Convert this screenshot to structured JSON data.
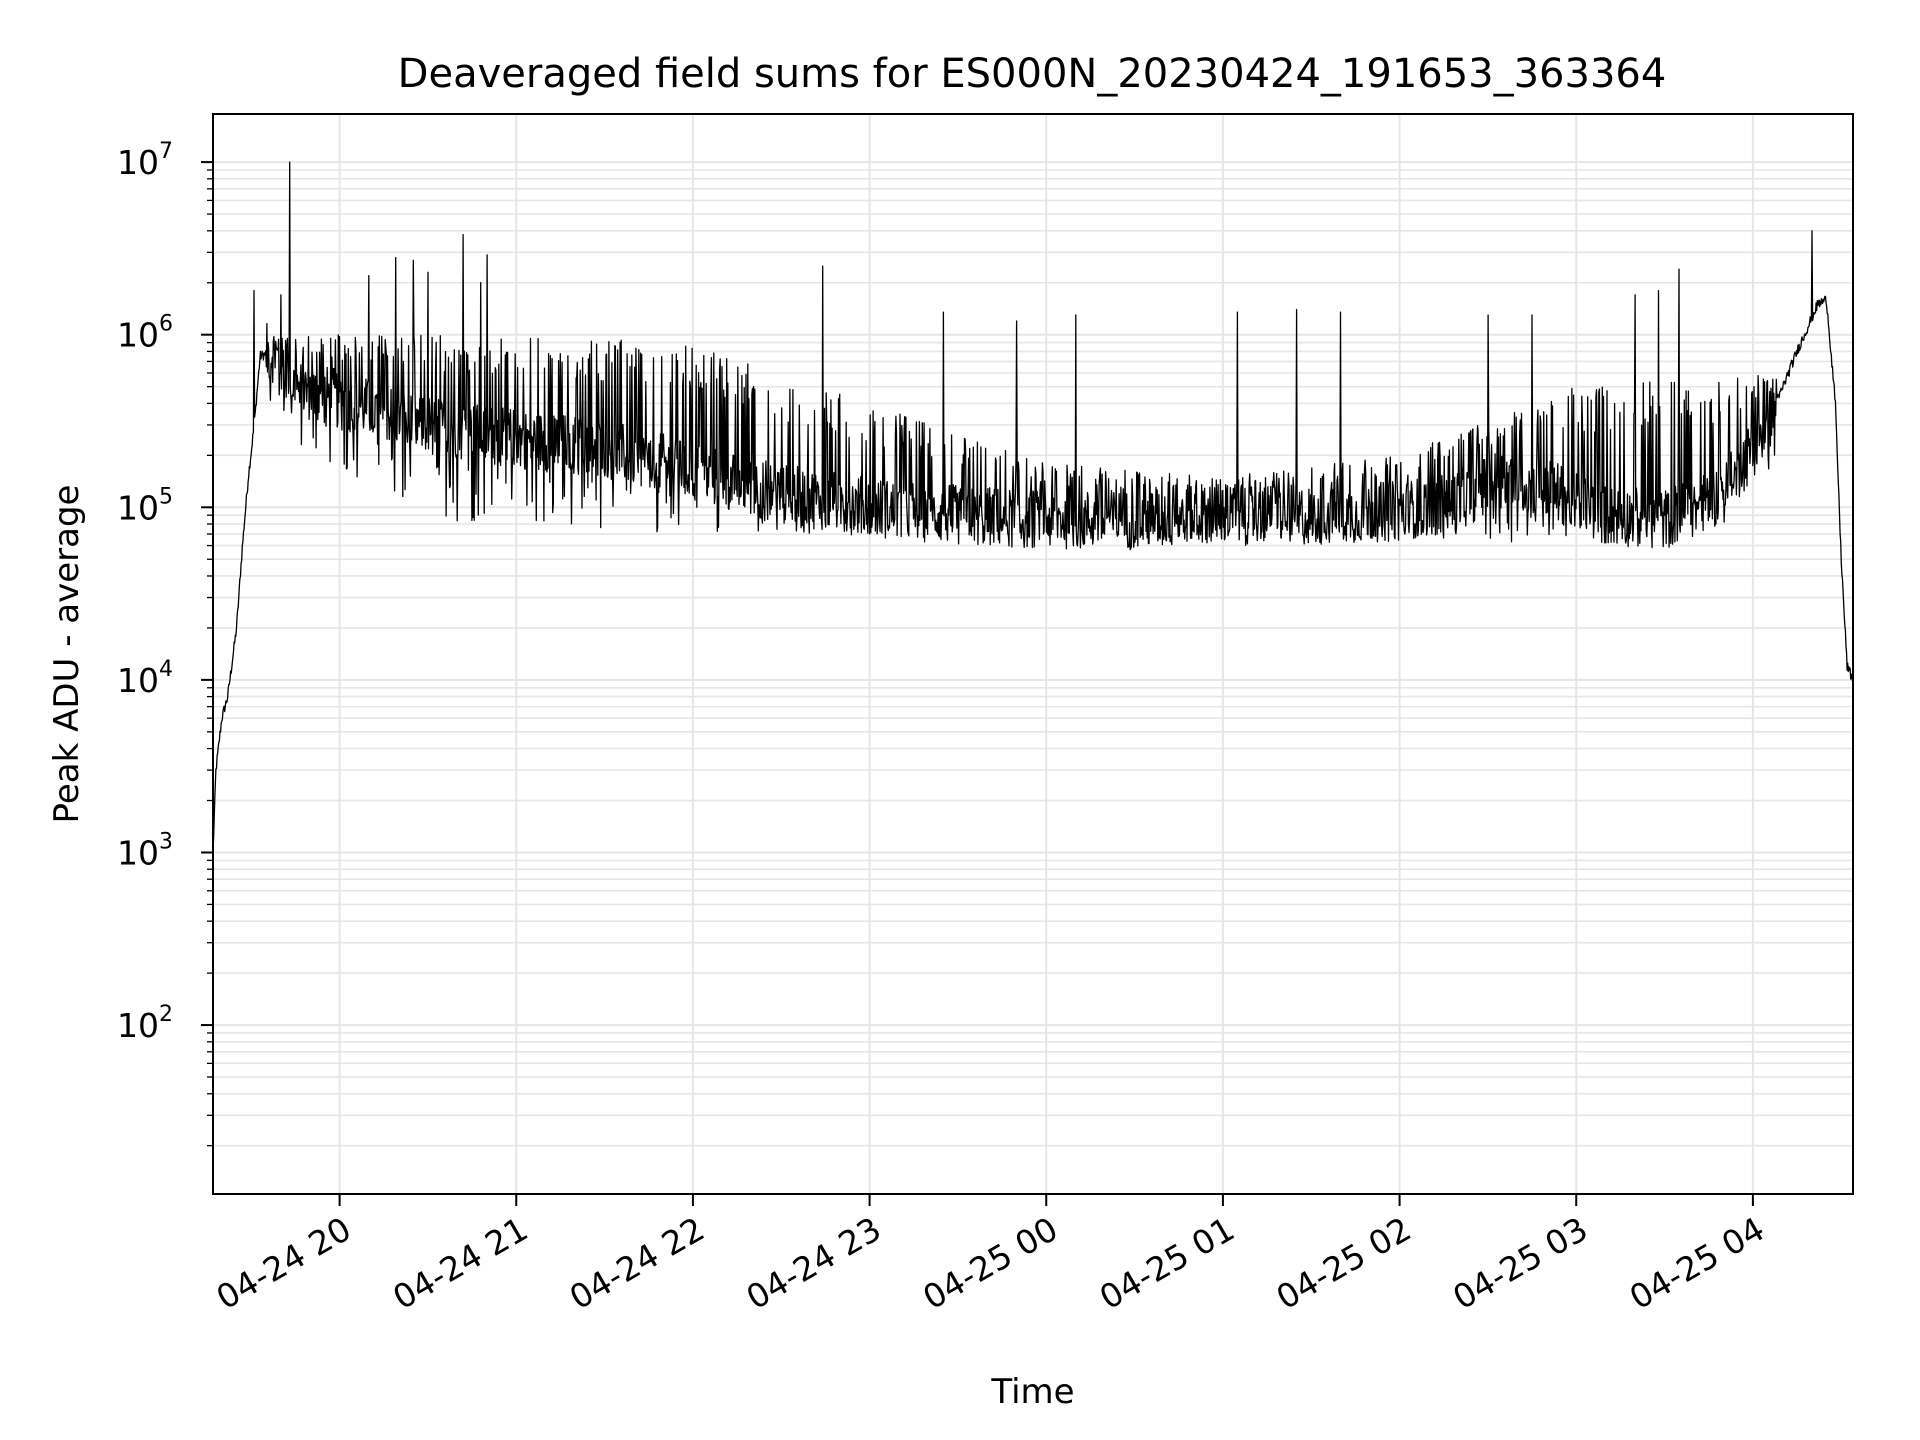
{
  "chart_data": {
    "type": "line",
    "title": "Deaveraged field sums for ES000N_20230424_191653_363364",
    "xlabel": "Time",
    "ylabel": "Peak ADU - average",
    "yscale": "log",
    "grid": true,
    "legend": "none",
    "line_color": "#000000",
    "grid_color": "#e6e6e6",
    "xlim": [
      "2023-04-24 19:17",
      "2023-04-25 04:34"
    ],
    "ylim": [
      10.5,
      19000000
    ],
    "x_ticks": [
      {
        "label": "04-24 20",
        "value": "2023-04-24 20:00"
      },
      {
        "label": "04-24 21",
        "value": "2023-04-24 21:00"
      },
      {
        "label": "04-24 22",
        "value": "2023-04-24 22:00"
      },
      {
        "label": "04-24 23",
        "value": "2023-04-24 23:00"
      },
      {
        "label": "04-25 00",
        "value": "2023-04-25 00:00"
      },
      {
        "label": "04-25 01",
        "value": "2023-04-25 01:00"
      },
      {
        "label": "04-25 02",
        "value": "2023-04-25 02:00"
      },
      {
        "label": "04-25 03",
        "value": "2023-04-25 03:00"
      },
      {
        "label": "04-25 04",
        "value": "2023-04-25 04:00"
      }
    ],
    "y_ticks": [
      {
        "base": "10",
        "exp": "2",
        "value": 100
      },
      {
        "base": "10",
        "exp": "3",
        "value": 1000
      },
      {
        "base": "10",
        "exp": "4",
        "value": 10000
      },
      {
        "base": "10",
        "exp": "5",
        "value": 100000
      },
      {
        "base": "10",
        "exp": "6",
        "value": 1000000
      },
      {
        "base": "10",
        "exp": "7",
        "value": 10000000
      }
    ],
    "baseline": [
      {
        "x": "2023-04-24 19:17",
        "y": 1000
      },
      {
        "x": "2023-04-24 19:18",
        "y": 3000
      },
      {
        "x": "2023-04-24 19:20",
        "y": 6000
      },
      {
        "x": "2023-04-24 19:22",
        "y": 8000
      },
      {
        "x": "2023-04-24 19:25",
        "y": 20000
      },
      {
        "x": "2023-04-24 19:27",
        "y": 60000
      },
      {
        "x": "2023-04-24 19:29",
        "y": 150000
      },
      {
        "x": "2023-04-24 19:31",
        "y": 300000
      },
      {
        "x": "2023-04-24 19:33",
        "y": 750000
      },
      {
        "x": "2023-04-24 19:37",
        "y": 800000
      },
      {
        "x": "2023-04-24 19:45",
        "y": 500000
      },
      {
        "x": "2023-04-24 20:30",
        "y": 300000
      },
      {
        "x": "2023-04-24 21:00",
        "y": 250000
      },
      {
        "x": "2023-04-24 21:30",
        "y": 220000
      },
      {
        "x": "2023-04-24 22:00",
        "y": 160000
      },
      {
        "x": "2023-04-24 22:30",
        "y": 120000
      },
      {
        "x": "2023-04-24 23:00",
        "y": 100000
      },
      {
        "x": "2023-04-24 23:30",
        "y": 90000
      },
      {
        "x": "2023-04-25 00:00",
        "y": 85000
      },
      {
        "x": "2023-04-25 00:30",
        "y": 85000
      },
      {
        "x": "2023-04-25 01:00",
        "y": 90000
      },
      {
        "x": "2023-04-25 01:30",
        "y": 90000
      },
      {
        "x": "2023-04-25 02:00",
        "y": 95000
      },
      {
        "x": "2023-04-25 02:20",
        "y": 110000
      },
      {
        "x": "2023-04-25 02:35",
        "y": 150000
      },
      {
        "x": "2023-04-25 02:50",
        "y": 130000
      },
      {
        "x": "2023-04-25 03:10",
        "y": 90000
      },
      {
        "x": "2023-04-25 03:30",
        "y": 85000
      },
      {
        "x": "2023-04-25 03:50",
        "y": 120000
      },
      {
        "x": "2023-04-25 04:05",
        "y": 300000
      },
      {
        "x": "2023-04-25 04:15",
        "y": 800000
      },
      {
        "x": "2023-04-25 04:22",
        "y": 1500000
      },
      {
        "x": "2023-04-25 04:25",
        "y": 1600000
      },
      {
        "x": "2023-04-25 04:28",
        "y": 400000
      },
      {
        "x": "2023-04-25 04:30",
        "y": 50000
      },
      {
        "x": "2023-04-25 04:32",
        "y": 12000
      },
      {
        "x": "2023-04-25 04:34",
        "y": 10000
      }
    ],
    "noise_upper": [
      {
        "x": "2023-04-24 19:35",
        "y": 1000000
      },
      {
        "x": "2023-04-24 21:00",
        "y": 1000000
      },
      {
        "x": "2023-04-24 22:00",
        "y": 900000
      },
      {
        "x": "2023-04-24 23:00",
        "y": 400000
      },
      {
        "x": "2023-04-25 00:00",
        "y": 180000
      },
      {
        "x": "2023-04-25 01:00",
        "y": 150000
      },
      {
        "x": "2023-04-25 02:00",
        "y": 200000
      },
      {
        "x": "2023-04-25 03:00",
        "y": 500000
      },
      {
        "x": "2023-04-25 04:00",
        "y": 600000
      }
    ],
    "noise_lower": [
      {
        "x": "2023-04-24 19:35",
        "y": 300000
      },
      {
        "x": "2023-04-24 20:30",
        "y": 80000
      },
      {
        "x": "2023-04-24 22:00",
        "y": 70000
      },
      {
        "x": "2023-04-24 23:00",
        "y": 70000
      },
      {
        "x": "2023-04-25 00:00",
        "y": 65000
      },
      {
        "x": "2023-04-25 01:00",
        "y": 65000
      },
      {
        "x": "2023-04-25 02:00",
        "y": 65000
      },
      {
        "x": "2023-04-25 03:00",
        "y": 60000
      },
      {
        "x": "2023-04-25 04:00",
        "y": 150000
      }
    ],
    "spikes": [
      {
        "x": "2023-04-24 19:31",
        "y": 1800000
      },
      {
        "x": "2023-04-24 19:43",
        "y": 10000000
      },
      {
        "x": "2023-04-24 19:40",
        "y": 1700000
      },
      {
        "x": "2023-04-24 20:10",
        "y": 2200000
      },
      {
        "x": "2023-04-24 20:19",
        "y": 2800000
      },
      {
        "x": "2023-04-24 20:25",
        "y": 2700000
      },
      {
        "x": "2023-04-24 20:30",
        "y": 2300000
      },
      {
        "x": "2023-04-24 20:42",
        "y": 3800000
      },
      {
        "x": "2023-04-24 20:48",
        "y": 2000000
      },
      {
        "x": "2023-04-24 20:50",
        "y": 2900000
      },
      {
        "x": "2023-04-24 22:44",
        "y": 2500000
      },
      {
        "x": "2023-04-24 23:25",
        "y": 1350000
      },
      {
        "x": "2023-04-24 23:50",
        "y": 1200000
      },
      {
        "x": "2023-04-25 00:10",
        "y": 1300000
      },
      {
        "x": "2023-04-25 01:05",
        "y": 1350000
      },
      {
        "x": "2023-04-25 01:25",
        "y": 1400000
      },
      {
        "x": "2023-04-25 01:40",
        "y": 1350000
      },
      {
        "x": "2023-04-25 02:30",
        "y": 1300000
      },
      {
        "x": "2023-04-25 02:45",
        "y": 1300000
      },
      {
        "x": "2023-04-25 03:20",
        "y": 1700000
      },
      {
        "x": "2023-04-25 03:28",
        "y": 1800000
      },
      {
        "x": "2023-04-25 03:35",
        "y": 2400000
      },
      {
        "x": "2023-04-25 04:20",
        "y": 4000000
      }
    ]
  }
}
